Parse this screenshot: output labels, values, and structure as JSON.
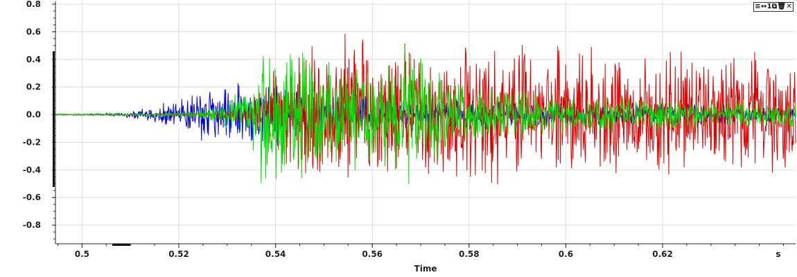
{
  "toolbar": {
    "menu_icon": "≡",
    "pan_icon": "↔",
    "count_label": "1",
    "copy_icon": "⧉",
    "delete_icon": "🗑",
    "close_icon": "✕"
  },
  "chart_data": {
    "type": "line",
    "xlabel": "Time",
    "x_unit_label": "s",
    "ylabel": "",
    "xlim": [
      0.4945,
      0.6475
    ],
    "ylim": [
      -0.935,
      0.82
    ],
    "xticks": [
      0.5,
      0.52,
      0.54,
      0.56,
      0.58,
      0.6,
      0.62
    ],
    "xtick_labels": [
      "0.5",
      "0.52",
      "0.54",
      "0.56",
      "0.58",
      "0.6",
      "0.62"
    ],
    "yticks": [
      -0.8,
      -0.6,
      -0.4,
      -0.2,
      0.0,
      0.2,
      0.4,
      0.6,
      0.8
    ],
    "ytick_labels": [
      "-0.8",
      "-0.6",
      "-0.4",
      "-0.2",
      "0.0",
      "0.2",
      "0.4",
      "0.6",
      "0.8"
    ],
    "grid": true,
    "legend": "none",
    "series": [
      {
        "color": "#0000e0",
        "envelope": {
          "t": [
            0.4945,
            0.5,
            0.505,
            0.51,
            0.515,
            0.52,
            0.525,
            0.53,
            0.535,
            0.54,
            0.545,
            0.55,
            0.56,
            0.58,
            0.6,
            0.62,
            0.6475
          ],
          "amp": [
            0.004,
            0.005,
            0.01,
            0.02,
            0.06,
            0.12,
            0.16,
            0.2,
            0.22,
            0.2,
            0.18,
            0.15,
            0.12,
            0.1,
            0.08,
            0.07,
            0.06
          ]
        }
      },
      {
        "color": "#e00000",
        "envelope": {
          "t": [
            0.4945,
            0.5,
            0.51,
            0.52,
            0.53,
            0.535,
            0.54,
            0.545,
            0.55,
            0.56,
            0.58,
            0.6,
            0.62,
            0.6475
          ],
          "amp": [
            0.003,
            0.004,
            0.006,
            0.01,
            0.03,
            0.1,
            0.3,
            0.45,
            0.5,
            0.48,
            0.45,
            0.42,
            0.4,
            0.38
          ]
        }
      },
      {
        "color": "#00e000",
        "envelope": {
          "t": [
            0.4945,
            0.5,
            0.51,
            0.52,
            0.525,
            0.53,
            0.535,
            0.538,
            0.54,
            0.545,
            0.55,
            0.56,
            0.565,
            0.58,
            0.6,
            0.62,
            0.6475
          ],
          "amp": [
            0.004,
            0.005,
            0.008,
            0.015,
            0.04,
            0.08,
            0.25,
            0.6,
            0.55,
            0.45,
            0.38,
            0.35,
            0.45,
            0.2,
            0.12,
            0.1,
            0.08
          ]
        }
      }
    ]
  }
}
